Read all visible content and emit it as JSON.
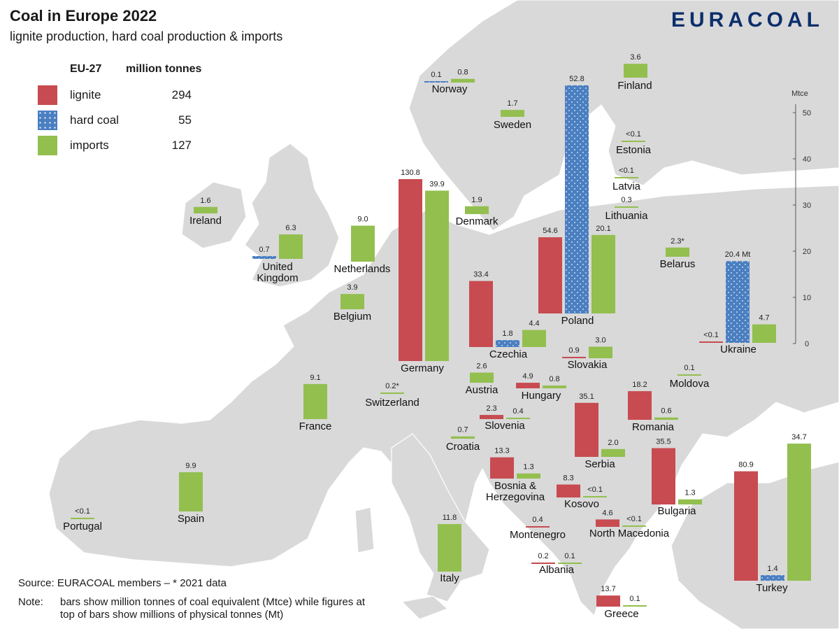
{
  "header": {
    "title": "Coal in Europe 2022",
    "subtitle": "lignite production, hard coal production & imports",
    "brand": "EURACOAL"
  },
  "legend": {
    "region": "EU-27",
    "unit": "million tonnes",
    "items": [
      {
        "label": "lignite",
        "value": "294",
        "color": "#c74b50"
      },
      {
        "label": "hard coal",
        "value": "55",
        "color": "#4a7fc1"
      },
      {
        "label": "imports",
        "value": "127",
        "color": "#93bf4f"
      }
    ]
  },
  "footer": {
    "source": "Source: EURACOAL members  –  * 2021 data",
    "note_label": "Note:",
    "note_text": "bars show million tonnes of coal equivalent (Mtce) while figures at top of bars show millions of physical tonnes (Mt)"
  },
  "chart_data": {
    "type": "bar",
    "title": "Coal in Europe 2022",
    "subtitle": "lignite production, hard coal production & imports",
    "ylabel": "Mtce",
    "ylim": [
      0,
      50
    ],
    "yticks": [
      0,
      10,
      20,
      30,
      40,
      50
    ],
    "series_names": [
      "lignite",
      "hard coal",
      "imports"
    ],
    "colors": {
      "lignite": "#c74b50",
      "hard_coal": "#4a7fc1",
      "imports": "#93bf4f",
      "land": "#d9d9d9",
      "sea": "#ffffff"
    },
    "countries": [
      {
        "name": "Norway",
        "bars": [
          {
            "series": "hard_coal",
            "mtce": 0.1,
            "label": "0.1"
          },
          {
            "series": "imports",
            "mtce": 0.8,
            "label": "0.8"
          }
        ]
      },
      {
        "name": "Finland",
        "bars": [
          {
            "series": "imports",
            "mtce": 3.0,
            "label": "3.6"
          }
        ]
      },
      {
        "name": "Sweden",
        "bars": [
          {
            "series": "imports",
            "mtce": 1.5,
            "label": "1.7"
          }
        ]
      },
      {
        "name": "Estonia",
        "bars": [
          {
            "series": "imports",
            "mtce": 0.1,
            "label": "<0.1"
          }
        ]
      },
      {
        "name": "Latvia",
        "bars": [
          {
            "series": "imports",
            "mtce": 0.1,
            "label": "<0.1"
          }
        ]
      },
      {
        "name": "Lithuania",
        "bars": [
          {
            "series": "imports",
            "mtce": 0.3,
            "label": "0.3"
          }
        ]
      },
      {
        "name": "Denmark",
        "bars": [
          {
            "series": "imports",
            "mtce": 1.7,
            "label": "1.9"
          }
        ]
      },
      {
        "name": "Ireland",
        "bars": [
          {
            "series": "imports",
            "mtce": 1.4,
            "label": "1.6"
          }
        ]
      },
      {
        "name": "United Kingdom",
        "bars": [
          {
            "series": "hard_coal",
            "mtce": 0.6,
            "label": "0.7"
          },
          {
            "series": "imports",
            "mtce": 5.3,
            "label": "6.3"
          }
        ]
      },
      {
        "name": "Netherlands",
        "bars": [
          {
            "series": "imports",
            "mtce": 7.8,
            "label": "9.0"
          }
        ]
      },
      {
        "name": "Belgium",
        "bars": [
          {
            "series": "imports",
            "mtce": 3.3,
            "label": "3.9"
          }
        ]
      },
      {
        "name": "Germany",
        "bars": [
          {
            "series": "lignite",
            "mtce": 39.4,
            "label": "130.8"
          },
          {
            "series": "imports",
            "mtce": 36.9,
            "label": "39.9"
          }
        ]
      },
      {
        "name": "Poland",
        "bars": [
          {
            "series": "lignite",
            "mtce": 16.5,
            "label": "54.6"
          },
          {
            "series": "hard_coal",
            "mtce": 49.4,
            "label": "52.8"
          },
          {
            "series": "imports",
            "mtce": 17.0,
            "label": "20.1"
          }
        ]
      },
      {
        "name": "Belarus",
        "bars": [
          {
            "series": "imports",
            "mtce": 2.0,
            "label": "2.3*"
          }
        ]
      },
      {
        "name": "Ukraine",
        "bars": [
          {
            "series": "lignite",
            "mtce": 0.1,
            "label": "<0.1"
          },
          {
            "series": "hard_coal",
            "mtce": 17.7,
            "label": "20.4 Mt"
          },
          {
            "series": "imports",
            "mtce": 4.0,
            "label": "4.7"
          }
        ]
      },
      {
        "name": "Czechia",
        "bars": [
          {
            "series": "lignite",
            "mtce": 14.3,
            "label": "33.4"
          },
          {
            "series": "hard_coal",
            "mtce": 1.5,
            "label": "1.8"
          },
          {
            "series": "imports",
            "mtce": 3.7,
            "label": "4.4"
          }
        ]
      },
      {
        "name": "Slovakia",
        "bars": [
          {
            "series": "lignite",
            "mtce": 0.3,
            "label": "0.9"
          },
          {
            "series": "imports",
            "mtce": 2.5,
            "label": "3.0"
          }
        ]
      },
      {
        "name": "France",
        "bars": [
          {
            "series": "imports",
            "mtce": 7.6,
            "label": "9.1"
          }
        ]
      },
      {
        "name": "Switzerland",
        "bars": [
          {
            "series": "imports",
            "mtce": 0.2,
            "label": "0.2*"
          }
        ]
      },
      {
        "name": "Austria",
        "bars": [
          {
            "series": "imports",
            "mtce": 2.2,
            "label": "2.6"
          }
        ]
      },
      {
        "name": "Hungary",
        "bars": [
          {
            "series": "lignite",
            "mtce": 1.2,
            "label": "4.9"
          },
          {
            "series": "imports",
            "mtce": 0.6,
            "label": "0.8"
          }
        ]
      },
      {
        "name": "Moldova",
        "bars": [
          {
            "series": "imports",
            "mtce": 0.1,
            "label": "0.1"
          }
        ]
      },
      {
        "name": "Slovenia",
        "bars": [
          {
            "series": "lignite",
            "mtce": 0.9,
            "label": "2.3"
          },
          {
            "series": "imports",
            "mtce": 0.3,
            "label": "0.4"
          }
        ]
      },
      {
        "name": "Romania",
        "bars": [
          {
            "series": "lignite",
            "mtce": 6.2,
            "label": "18.2"
          },
          {
            "series": "imports",
            "mtce": 0.5,
            "label": "0.6"
          }
        ]
      },
      {
        "name": "Croatia",
        "bars": [
          {
            "series": "imports",
            "mtce": 0.5,
            "label": "0.7"
          }
        ]
      },
      {
        "name": "Serbia",
        "bars": [
          {
            "series": "lignite",
            "mtce": 11.7,
            "label": "35.1"
          },
          {
            "series": "imports",
            "mtce": 1.7,
            "label": "2.0"
          }
        ]
      },
      {
        "name": "Bosnia & Herzegovina",
        "bars": [
          {
            "series": "lignite",
            "mtce": 4.6,
            "label": "13.3"
          },
          {
            "series": "imports",
            "mtce": 1.1,
            "label": "1.3"
          }
        ]
      },
      {
        "name": "Kosovo",
        "bars": [
          {
            "series": "lignite",
            "mtce": 2.8,
            "label": "8.3"
          },
          {
            "series": "imports",
            "mtce": 0.1,
            "label": "<0.1"
          }
        ]
      },
      {
        "name": "Bulgaria",
        "bars": [
          {
            "series": "lignite",
            "mtce": 12.2,
            "label": "35.5"
          },
          {
            "series": "imports",
            "mtce": 1.1,
            "label": "1.3"
          }
        ]
      },
      {
        "name": "North Macedonia",
        "bars": [
          {
            "series": "lignite",
            "mtce": 1.6,
            "label": "4.6"
          },
          {
            "series": "imports",
            "mtce": 0.1,
            "label": "<0.1"
          }
        ]
      },
      {
        "name": "Montenegro",
        "bars": [
          {
            "series": "lignite",
            "mtce": 0.1,
            "label": "0.4"
          }
        ]
      },
      {
        "name": "Albania",
        "bars": [
          {
            "series": "lignite",
            "mtce": 0.1,
            "label": "0.2"
          },
          {
            "series": "imports",
            "mtce": 0.1,
            "label": "0.1"
          }
        ]
      },
      {
        "name": "Italy",
        "bars": [
          {
            "series": "imports",
            "mtce": 10.3,
            "label": "11.8"
          }
        ]
      },
      {
        "name": "Greece",
        "bars": [
          {
            "series": "lignite",
            "mtce": 2.4,
            "label": "13.7"
          },
          {
            "series": "imports",
            "mtce": 0.1,
            "label": "0.1"
          }
        ]
      },
      {
        "name": "Turkey",
        "bars": [
          {
            "series": "lignite",
            "mtce": 23.7,
            "label": "80.9"
          },
          {
            "series": "hard_coal",
            "mtce": 1.2,
            "label": "1.4"
          },
          {
            "series": "imports",
            "mtce": 29.7,
            "label": "34.7"
          }
        ]
      },
      {
        "name": "Spain",
        "bars": [
          {
            "series": "imports",
            "mtce": 8.5,
            "label": "9.9"
          }
        ]
      },
      {
        "name": "Portugal",
        "bars": [
          {
            "series": "imports",
            "mtce": 0.1,
            "label": "<0.1"
          }
        ]
      }
    ]
  }
}
